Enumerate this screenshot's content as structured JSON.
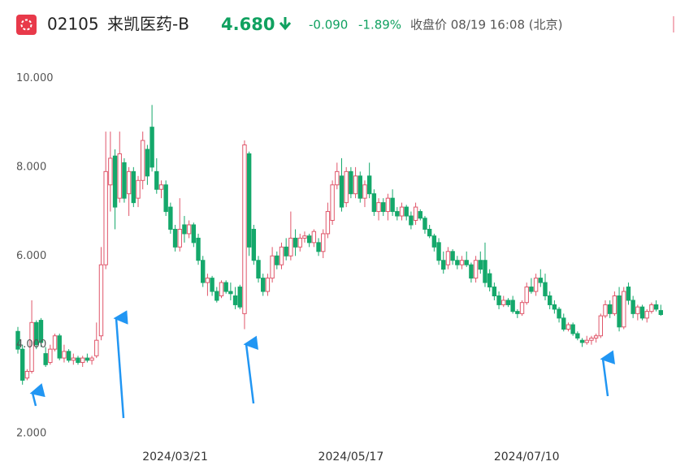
{
  "header": {
    "code": "02105",
    "name": "来凯医药-B",
    "price": "4.680",
    "change": "-0.090",
    "change_pct": "-1.89%",
    "status": "收盘价 08/19 16:08 (北京)"
  },
  "chart_data": {
    "type": "candlestick",
    "up_color": "#e0566a",
    "down_color": "#14a86b",
    "ylim": [
      1.8,
      10.4
    ],
    "yticks": [
      {
        "value": 2,
        "label": "2.000"
      },
      {
        "value": 4,
        "label": "4.000"
      },
      {
        "value": 6,
        "label": "6.000"
      },
      {
        "value": 8,
        "label": "8.000"
      },
      {
        "value": 10,
        "label": "10.000"
      }
    ],
    "xlim": [
      -0.5,
      140
    ],
    "xticks": [
      {
        "value": 34,
        "label": "2024/03/21"
      },
      {
        "value": 72,
        "label": "2024/05/17"
      },
      {
        "value": 110,
        "label": "2024/07/10"
      }
    ],
    "ohlc": [
      [
        4.3,
        4.4,
        3.8,
        3.9
      ],
      [
        3.9,
        4.0,
        3.1,
        3.2
      ],
      [
        3.25,
        3.45,
        3.2,
        3.4
      ],
      [
        3.4,
        5.0,
        3.35,
        4.5
      ],
      [
        4.5,
        4.55,
        3.9,
        4.0
      ],
      [
        4.55,
        4.6,
        3.95,
        4.05
      ],
      [
        3.8,
        3.95,
        3.5,
        3.55
      ],
      [
        3.6,
        4.0,
        3.55,
        3.9
      ],
      [
        3.9,
        4.25,
        3.85,
        4.2
      ],
      [
        4.2,
        4.25,
        3.65,
        3.7
      ],
      [
        3.7,
        4.0,
        3.6,
        3.85
      ],
      [
        3.85,
        3.9,
        3.6,
        3.65
      ],
      [
        3.65,
        3.8,
        3.55,
        3.7
      ],
      [
        3.7,
        3.75,
        3.55,
        3.6
      ],
      [
        3.6,
        3.75,
        3.5,
        3.7
      ],
      [
        3.7,
        3.8,
        3.6,
        3.65
      ],
      [
        3.65,
        3.75,
        3.55,
        3.7
      ],
      [
        3.75,
        4.5,
        3.7,
        4.1
      ],
      [
        4.2,
        6.2,
        4.1,
        5.8
      ],
      [
        5.8,
        8.8,
        5.7,
        7.9
      ],
      [
        7.6,
        8.8,
        7.0,
        8.2
      ],
      [
        8.25,
        8.4,
        6.6,
        7.1
      ],
      [
        7.3,
        8.8,
        7.2,
        8.3
      ],
      [
        8.1,
        8.2,
        7.2,
        7.3
      ],
      [
        7.4,
        8.0,
        6.9,
        7.9
      ],
      [
        7.9,
        8.0,
        7.1,
        7.2
      ],
      [
        7.3,
        7.8,
        7.1,
        7.7
      ],
      [
        7.7,
        8.8,
        7.5,
        8.6
      ],
      [
        8.4,
        8.5,
        7.6,
        7.8
      ],
      [
        8.9,
        9.4,
        7.9,
        8.0
      ],
      [
        7.9,
        8.2,
        7.4,
        7.5
      ],
      [
        7.5,
        7.7,
        7.3,
        7.6
      ],
      [
        7.6,
        7.7,
        6.9,
        7.0
      ],
      [
        7.1,
        7.2,
        6.5,
        6.6
      ],
      [
        6.6,
        6.7,
        6.1,
        6.2
      ],
      [
        6.2,
        7.3,
        6.1,
        6.6
      ],
      [
        6.7,
        6.9,
        6.3,
        6.5
      ],
      [
        6.5,
        6.8,
        6.4,
        6.7
      ],
      [
        6.7,
        6.75,
        6.2,
        6.3
      ],
      [
        6.4,
        6.5,
        5.8,
        5.9
      ],
      [
        5.9,
        6.0,
        5.3,
        5.4
      ],
      [
        5.4,
        5.6,
        5.1,
        5.5
      ],
      [
        5.5,
        5.55,
        5.1,
        5.2
      ],
      [
        5.2,
        5.3,
        4.95,
        5.0
      ],
      [
        5.1,
        5.45,
        5.05,
        5.4
      ],
      [
        5.4,
        5.45,
        5.15,
        5.2
      ],
      [
        5.2,
        5.4,
        5.0,
        5.15
      ],
      [
        5.1,
        5.3,
        4.8,
        4.9
      ],
      [
        5.3,
        5.35,
        4.8,
        4.85
      ],
      [
        4.7,
        8.6,
        4.35,
        8.5
      ],
      [
        8.3,
        8.35,
        6.0,
        6.2
      ],
      [
        6.6,
        6.7,
        5.8,
        5.9
      ],
      [
        5.9,
        6.0,
        5.4,
        5.5
      ],
      [
        5.5,
        5.6,
        5.1,
        5.2
      ],
      [
        5.2,
        5.6,
        5.1,
        5.5
      ],
      [
        5.5,
        6.2,
        5.4,
        6.0
      ],
      [
        6.0,
        6.1,
        5.7,
        5.8
      ],
      [
        5.8,
        6.3,
        5.7,
        6.2
      ],
      [
        6.2,
        6.4,
        5.9,
        6.0
      ],
      [
        6.0,
        7.0,
        5.9,
        6.4
      ],
      [
        6.4,
        6.6,
        6.0,
        6.2
      ],
      [
        6.2,
        6.5,
        6.1,
        6.4
      ],
      [
        6.4,
        6.55,
        6.3,
        6.45
      ],
      [
        6.45,
        6.5,
        6.2,
        6.3
      ],
      [
        6.3,
        6.6,
        6.2,
        6.55
      ],
      [
        6.3,
        6.4,
        6.0,
        6.1
      ],
      [
        6.1,
        6.6,
        5.95,
        6.5
      ],
      [
        6.5,
        7.2,
        6.4,
        7.0
      ],
      [
        6.8,
        7.7,
        6.7,
        7.6
      ],
      [
        7.6,
        8.1,
        7.5,
        7.9
      ],
      [
        7.8,
        8.2,
        7.0,
        7.1
      ],
      [
        7.2,
        8.0,
        7.1,
        7.9
      ],
      [
        7.9,
        8.0,
        7.3,
        7.4
      ],
      [
        7.4,
        8.0,
        7.3,
        7.8
      ],
      [
        7.8,
        7.9,
        7.2,
        7.3
      ],
      [
        7.3,
        7.7,
        7.1,
        7.6
      ],
      [
        7.8,
        8.1,
        7.3,
        7.4
      ],
      [
        7.4,
        7.5,
        6.9,
        7.0
      ],
      [
        7.0,
        7.3,
        6.8,
        7.2
      ],
      [
        7.2,
        7.3,
        6.9,
        7.0
      ],
      [
        7.0,
        7.4,
        6.8,
        7.3
      ],
      [
        7.3,
        7.5,
        6.9,
        7.0
      ],
      [
        7.0,
        7.1,
        6.8,
        6.9
      ],
      [
        6.9,
        7.2,
        6.8,
        7.1
      ],
      [
        7.1,
        7.15,
        6.8,
        6.9
      ],
      [
        6.9,
        7.0,
        6.6,
        6.7
      ],
      [
        6.8,
        7.2,
        6.7,
        7.1
      ],
      [
        7.0,
        7.05,
        6.8,
        6.85
      ],
      [
        6.85,
        6.9,
        6.5,
        6.6
      ],
      [
        6.6,
        6.7,
        6.4,
        6.45
      ],
      [
        6.45,
        6.5,
        6.1,
        6.2
      ],
      [
        6.3,
        6.4,
        5.8,
        5.9
      ],
      [
        5.9,
        6.1,
        5.6,
        5.7
      ],
      [
        5.8,
        6.2,
        5.7,
        6.1
      ],
      [
        6.1,
        6.15,
        5.8,
        5.9
      ],
      [
        5.9,
        6.0,
        5.7,
        5.8
      ],
      [
        5.8,
        6.0,
        5.7,
        5.9
      ],
      [
        5.9,
        6.1,
        5.75,
        5.8
      ],
      [
        5.8,
        5.85,
        5.4,
        5.5
      ],
      [
        5.5,
        6.0,
        5.4,
        5.9
      ],
      [
        5.9,
        6.1,
        5.6,
        5.7
      ],
      [
        5.9,
        6.3,
        5.3,
        5.4
      ],
      [
        5.6,
        5.7,
        5.2,
        5.3
      ],
      [
        5.3,
        5.4,
        5.0,
        5.1
      ],
      [
        5.1,
        5.2,
        4.8,
        4.9
      ],
      [
        4.9,
        5.1,
        4.85,
        5.0
      ],
      [
        5.0,
        5.05,
        4.85,
        4.9
      ],
      [
        5.0,
        5.1,
        4.7,
        4.75
      ],
      [
        4.75,
        4.8,
        4.6,
        4.7
      ],
      [
        4.7,
        5.0,
        4.65,
        4.95
      ],
      [
        4.95,
        5.4,
        4.9,
        5.3
      ],
      [
        5.3,
        5.5,
        5.15,
        5.2
      ],
      [
        5.2,
        5.6,
        5.1,
        5.5
      ],
      [
        5.5,
        5.7,
        5.3,
        5.4
      ],
      [
        5.4,
        5.6,
        5.0,
        5.1
      ],
      [
        5.1,
        5.2,
        4.8,
        4.9
      ],
      [
        4.9,
        5.0,
        4.7,
        4.8
      ],
      [
        4.8,
        4.85,
        4.5,
        4.6
      ],
      [
        4.6,
        4.7,
        4.3,
        4.35
      ],
      [
        4.35,
        4.5,
        4.3,
        4.45
      ],
      [
        4.45,
        4.5,
        4.2,
        4.25
      ],
      [
        4.25,
        4.3,
        4.1,
        4.15
      ],
      [
        4.1,
        4.15,
        3.95,
        4.05
      ],
      [
        4.05,
        4.2,
        4.0,
        4.1
      ],
      [
        4.1,
        4.2,
        4.0,
        4.15
      ],
      [
        4.15,
        4.25,
        4.05,
        4.2
      ],
      [
        4.2,
        4.7,
        4.15,
        4.65
      ],
      [
        4.65,
        5.0,
        4.6,
        4.9
      ],
      [
        4.9,
        5.0,
        4.6,
        4.7
      ],
      [
        4.7,
        5.2,
        4.65,
        5.1
      ],
      [
        5.1,
        5.3,
        4.3,
        4.4
      ],
      [
        4.4,
        5.3,
        4.35,
        5.2
      ],
      [
        5.3,
        5.4,
        4.9,
        5.0
      ],
      [
        5.0,
        5.1,
        4.6,
        4.7
      ],
      [
        4.7,
        4.9,
        4.55,
        4.85
      ],
      [
        4.85,
        4.9,
        4.55,
        4.6
      ],
      [
        4.6,
        4.8,
        4.5,
        4.75
      ],
      [
        4.75,
        4.95,
        4.7,
        4.9
      ],
      [
        4.9,
        5.0,
        4.75,
        4.8
      ],
      [
        4.77,
        4.9,
        4.65,
        4.68
      ]
    ]
  }
}
